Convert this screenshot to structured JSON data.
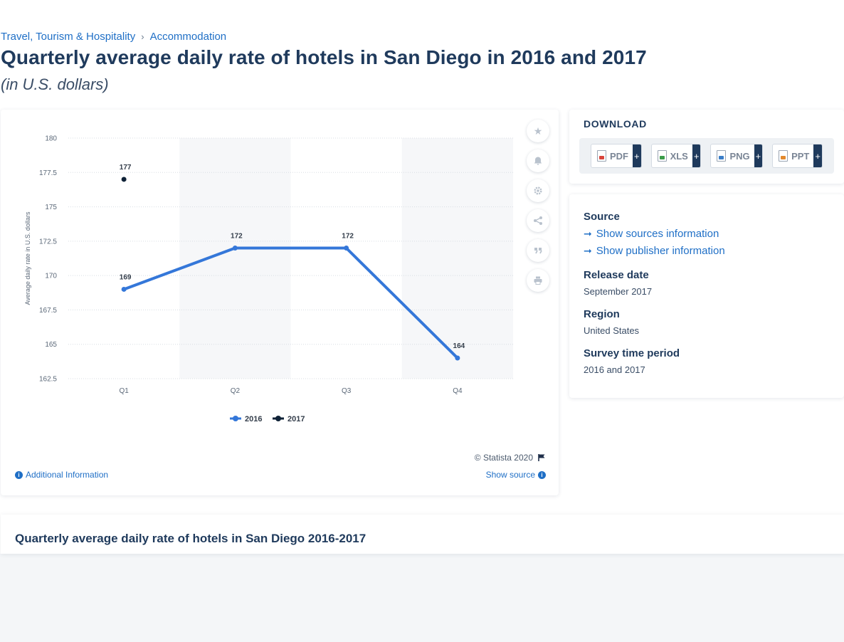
{
  "breadcrumb": {
    "items": [
      "Travel, Tourism & Hospitality",
      "Accommodation"
    ],
    "separator": "›"
  },
  "page": {
    "title": "Quarterly average daily rate of hotels in San Diego in 2016 and 2017",
    "subtitle": "(in U.S. dollars)"
  },
  "chart_data": {
    "type": "line",
    "categories": [
      "Q1",
      "Q2",
      "Q3",
      "Q4"
    ],
    "series": [
      {
        "name": "2016",
        "color": "#3477d9",
        "values": [
          169,
          172,
          172,
          164
        ],
        "labels": [
          "169",
          "172",
          "172",
          "164"
        ]
      },
      {
        "name": "2017",
        "color": "#0f2237",
        "values": [
          177,
          null,
          null,
          null
        ],
        "labels": [
          "177",
          "",
          "",
          ""
        ]
      }
    ],
    "ylabel": "Average daily rate in U.S. dollars",
    "xlabel": "",
    "ylim": [
      162.5,
      180
    ],
    "yticks": [
      "162.5",
      "165",
      "167.5",
      "170",
      "172.5",
      "175",
      "177.5",
      "180"
    ],
    "grid": true,
    "legend": "bottom-center"
  },
  "chart_tools": [
    "star-icon",
    "bell-icon",
    "gear-icon",
    "share-icon",
    "quote-icon",
    "print-icon"
  ],
  "chart_footer": {
    "copyright": "© Statista 2020",
    "additional_info": "Additional Information",
    "show_source": "Show source"
  },
  "download": {
    "title": "DOWNLOAD",
    "formats": [
      "PDF",
      "XLS",
      "PNG",
      "PPT"
    ],
    "plus": "+"
  },
  "meta": {
    "source_label": "Source",
    "show_sources": "Show sources information",
    "show_publisher": "Show publisher information",
    "release_label": "Release date",
    "release_value": "September 2017",
    "region_label": "Region",
    "region_value": "United States",
    "survey_label": "Survey time period",
    "survey_value": "2016 and 2017"
  },
  "bottom": {
    "title": "Quarterly average daily rate of hotels in San Diego 2016-2017"
  }
}
